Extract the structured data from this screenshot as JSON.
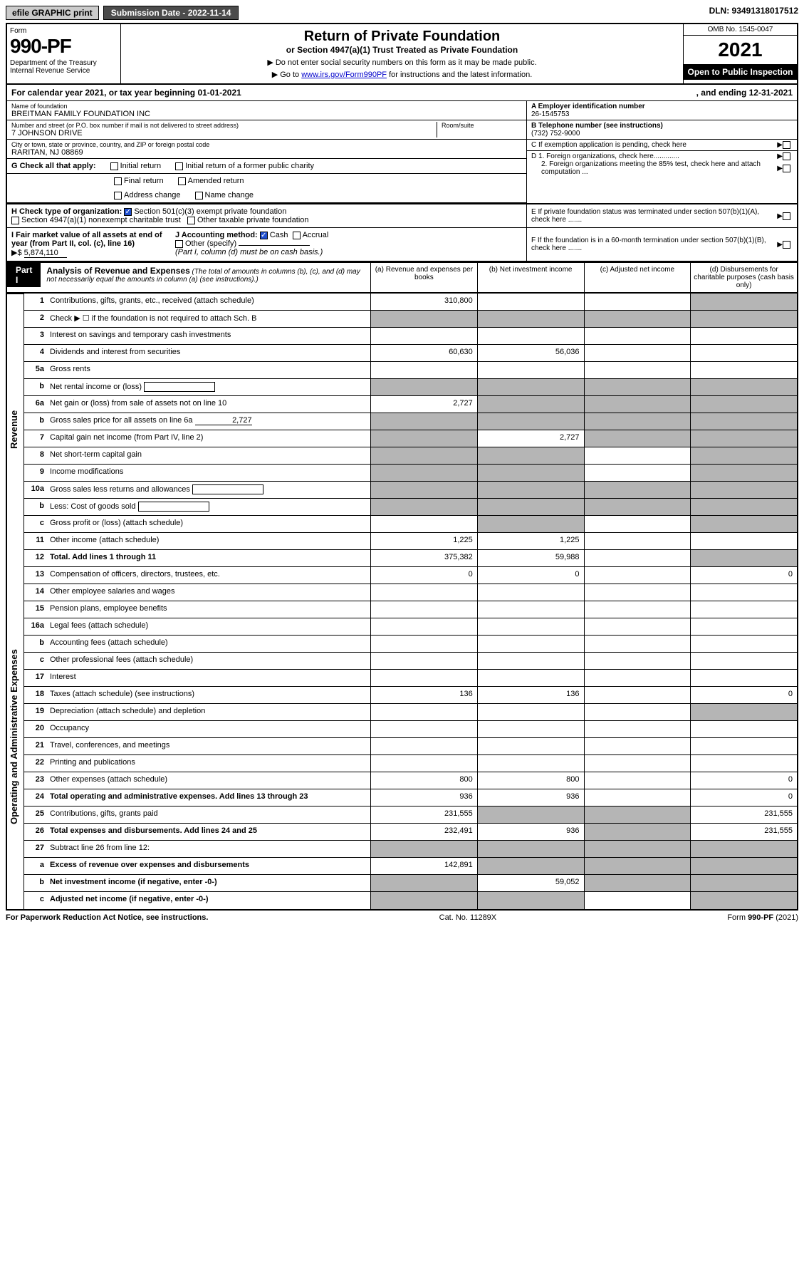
{
  "topbar": {
    "efile": "efile GRAPHIC print",
    "submission": "Submission Date - 2022-11-14",
    "dln": "DLN: 93491318017512"
  },
  "header": {
    "form_word": "Form",
    "form_number": "990-PF",
    "dept": "Department of the Treasury\nInternal Revenue Service",
    "title": "Return of Private Foundation",
    "subtitle": "or Section 4947(a)(1) Trust Treated as Private Foundation",
    "note1": "▶ Do not enter social security numbers on this form as it may be made public.",
    "note2_pre": "▶ Go to ",
    "note2_link": "www.irs.gov/Form990PF",
    "note2_post": " for instructions and the latest information.",
    "omb": "OMB No. 1545-0047",
    "year": "2021",
    "open": "Open to Public Inspection"
  },
  "cal": {
    "text": "For calendar year 2021, or tax year beginning 01-01-2021",
    "ending": ", and ending 12-31-2021"
  },
  "info": {
    "name_label": "Name of foundation",
    "name_val": "BREITMAN FAMILY FOUNDATION INC",
    "addr_label": "Number and street (or P.O. box number if mail is not delivered to street address)",
    "addr_val": "7 JOHNSON DRIVE",
    "room_label": "Room/suite",
    "city_label": "City or town, state or province, country, and ZIP or foreign postal code",
    "city_val": "RARITAN, NJ  08869",
    "ein_label": "A Employer identification number",
    "ein_val": "26-1545753",
    "tel_label": "B Telephone number (see instructions)",
    "tel_val": "(732) 752-9000",
    "c_label": "C If exemption application is pending, check here",
    "d1_label": "D 1. Foreign organizations, check here.............",
    "d2_label": "2. Foreign organizations meeting the 85% test, check here and attach computation ...",
    "e_label": "E  If private foundation status was terminated under section 507(b)(1)(A), check here .......",
    "f_label": "F  If the foundation is in a 60-month termination under section 507(b)(1)(B), check here ......."
  },
  "g": {
    "label": "G Check all that apply:",
    "opts": [
      "Initial return",
      "Final return",
      "Address change",
      "Initial return of a former public charity",
      "Amended return",
      "Name change"
    ]
  },
  "h": {
    "label": "H Check type of organization:",
    "opt1": "Section 501(c)(3) exempt private foundation",
    "opt2": "Section 4947(a)(1) nonexempt charitable trust",
    "opt3": "Other taxable private foundation"
  },
  "i": {
    "label": "I Fair market value of all assets at end of year (from Part II, col. (c), line 16)",
    "val": "5,874,110",
    "arrow": "▶$"
  },
  "j": {
    "label": "J Accounting method:",
    "cash": "Cash",
    "accrual": "Accrual",
    "other": "Other (specify)",
    "note": "(Part I, column (d) must be on cash basis.)"
  },
  "part1": {
    "label": "Part I",
    "title": "Analysis of Revenue and Expenses",
    "note": "(The total of amounts in columns (b), (c), and (d) may not necessarily equal the amounts in column (a) (see instructions).)",
    "cols": {
      "a": "(a) Revenue and expenses per books",
      "b": "(b) Net investment income",
      "c": "(c) Adjusted net income",
      "d": "(d) Disbursements for charitable purposes (cash basis only)"
    }
  },
  "sides": {
    "revenue": "Revenue",
    "expenses": "Operating and Administrative Expenses"
  },
  "rows": [
    {
      "n": "1",
      "t": "Contributions, gifts, grants, etc., received (attach schedule)",
      "a": "310,800",
      "shade_d": true
    },
    {
      "n": "2",
      "t": "Check ▶ ☐ if the foundation is not required to attach Sch. B",
      "allgrey": true
    },
    {
      "n": "3",
      "t": "Interest on savings and temporary cash investments"
    },
    {
      "n": "4",
      "t": "Dividends and interest from securities",
      "a": "60,630",
      "b": "56,036"
    },
    {
      "n": "5a",
      "t": "Gross rents"
    },
    {
      "n": "b",
      "t": "Net rental income or (loss)",
      "box": true,
      "allgrey": true
    },
    {
      "n": "6a",
      "t": "Net gain or (loss) from sale of assets not on line 10",
      "a": "2,727",
      "shade_bcd": true
    },
    {
      "n": "b",
      "t": "Gross sales price for all assets on line 6a",
      "inline": "2,727",
      "allgrey": true
    },
    {
      "n": "7",
      "t": "Capital gain net income (from Part IV, line 2)",
      "b": "2,727",
      "shade_a": true,
      "shade_cd": true
    },
    {
      "n": "8",
      "t": "Net short-term capital gain",
      "shade_ab": true,
      "shade_d": true
    },
    {
      "n": "9",
      "t": "Income modifications",
      "shade_ab": true,
      "shade_d": true
    },
    {
      "n": "10a",
      "t": "Gross sales less returns and allowances",
      "box": true,
      "allgrey": true
    },
    {
      "n": "b",
      "t": "Less: Cost of goods sold",
      "box": true,
      "allgrey": true
    },
    {
      "n": "c",
      "t": "Gross profit or (loss) (attach schedule)",
      "shade_b": true,
      "shade_d": true
    },
    {
      "n": "11",
      "t": "Other income (attach schedule)",
      "a": "1,225",
      "b": "1,225"
    },
    {
      "n": "12",
      "t": "Total. Add lines 1 through 11",
      "bold": true,
      "a": "375,382",
      "b": "59,988",
      "shade_d": true
    },
    {
      "n": "13",
      "t": "Compensation of officers, directors, trustees, etc.",
      "a": "0",
      "b": "0",
      "d": "0"
    },
    {
      "n": "14",
      "t": "Other employee salaries and wages"
    },
    {
      "n": "15",
      "t": "Pension plans, employee benefits"
    },
    {
      "n": "16a",
      "t": "Legal fees (attach schedule)"
    },
    {
      "n": "b",
      "t": "Accounting fees (attach schedule)"
    },
    {
      "n": "c",
      "t": "Other professional fees (attach schedule)"
    },
    {
      "n": "17",
      "t": "Interest"
    },
    {
      "n": "18",
      "t": "Taxes (attach schedule) (see instructions)",
      "a": "136",
      "b": "136",
      "d": "0"
    },
    {
      "n": "19",
      "t": "Depreciation (attach schedule) and depletion",
      "shade_d": true
    },
    {
      "n": "20",
      "t": "Occupancy"
    },
    {
      "n": "21",
      "t": "Travel, conferences, and meetings"
    },
    {
      "n": "22",
      "t": "Printing and publications"
    },
    {
      "n": "23",
      "t": "Other expenses (attach schedule)",
      "a": "800",
      "b": "800",
      "d": "0"
    },
    {
      "n": "24",
      "t": "Total operating and administrative expenses. Add lines 13 through 23",
      "bold": true,
      "a": "936",
      "b": "936",
      "d": "0"
    },
    {
      "n": "25",
      "t": "Contributions, gifts, grants paid",
      "a": "231,555",
      "shade_bc": true,
      "d": "231,555"
    },
    {
      "n": "26",
      "t": "Total expenses and disbursements. Add lines 24 and 25",
      "bold": true,
      "a": "232,491",
      "b": "936",
      "shade_c": true,
      "d": "231,555"
    },
    {
      "n": "27",
      "t": "Subtract line 26 from line 12:",
      "allgrey": true
    },
    {
      "n": "a",
      "t": "Excess of revenue over expenses and disbursements",
      "bold": true,
      "a": "142,891",
      "shade_bcd": true
    },
    {
      "n": "b",
      "t": "Net investment income (if negative, enter -0-)",
      "bold": true,
      "shade_a": true,
      "b": "59,052",
      "shade_cd": true
    },
    {
      "n": "c",
      "t": "Adjusted net income (if negative, enter -0-)",
      "bold": true,
      "shade_ab": true,
      "shade_d": true
    }
  ],
  "footer": {
    "left": "For Paperwork Reduction Act Notice, see instructions.",
    "mid": "Cat. No. 11289X",
    "right": "Form 990-PF (2021)"
  }
}
